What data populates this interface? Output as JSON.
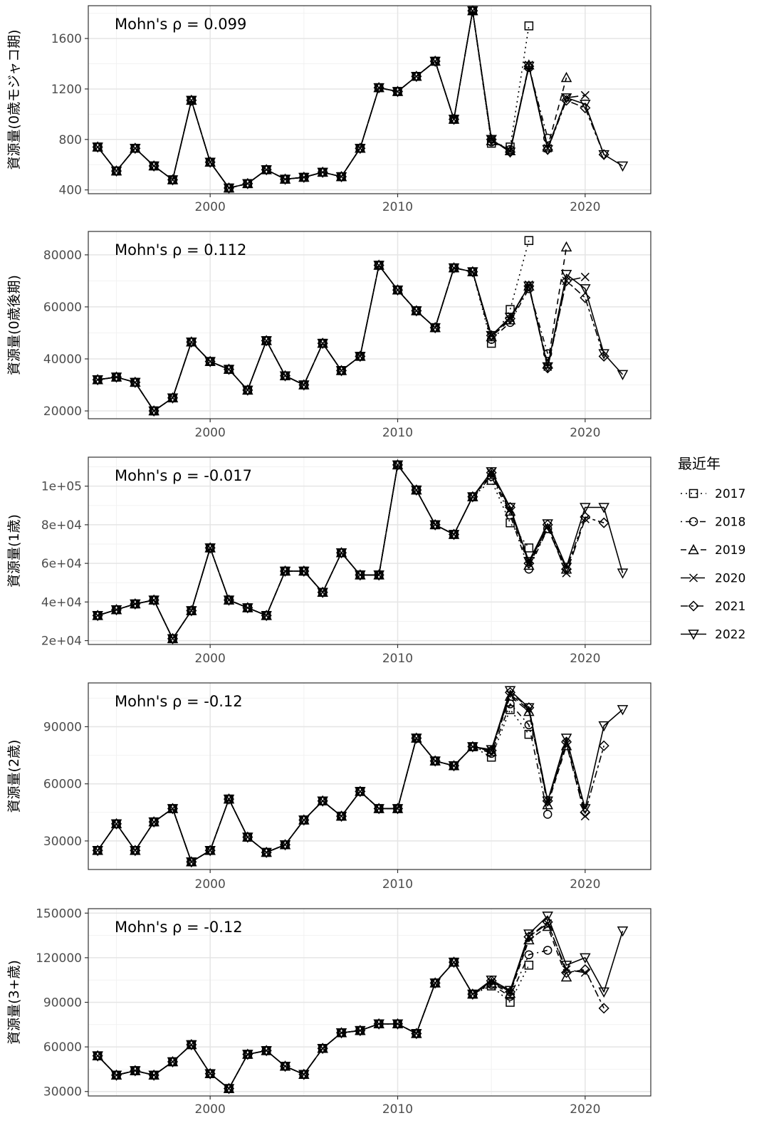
{
  "legend": {
    "title": "最近年",
    "entries": [
      {
        "label": "2017",
        "shape": "square",
        "dash": "dotted"
      },
      {
        "label": "2018",
        "shape": "circle",
        "dash": "dotdash"
      },
      {
        "label": "2019",
        "shape": "triangle-up",
        "dash": "dashed"
      },
      {
        "label": "2020",
        "shape": "cross",
        "dash": "longdash"
      },
      {
        "label": "2021",
        "shape": "diamond",
        "dash": "twodash"
      },
      {
        "label": "2022",
        "shape": "triangle-down",
        "dash": "solid"
      }
    ]
  },
  "chart_data": [
    {
      "type": "line",
      "ylabel": "資源量(0歳モジャコ期)",
      "annotation": "Mohn's ρ = 0.099",
      "xlim": [
        1993.5,
        2023.5
      ],
      "ylim": [
        370,
        1860
      ],
      "yticks": [
        400,
        800,
        1200,
        1600
      ],
      "ytick_labels": [
        "400",
        "800",
        "1200",
        "1600"
      ],
      "xticks": [
        2000,
        2010,
        2020
      ],
      "grid": true,
      "base_x": [
        1994,
        1995,
        1996,
        1997,
        1998,
        1999,
        2000,
        2001,
        2002,
        2003,
        2004,
        2005,
        2006,
        2007,
        2008,
        2009,
        2010,
        2011,
        2012,
        2013,
        2014
      ],
      "base_y": [
        740,
        550,
        730,
        590,
        480,
        1110,
        620,
        415,
        450,
        560,
        485,
        500,
        540,
        505,
        730,
        1210,
        1180,
        1300,
        1420,
        960,
        1820
      ],
      "series": [
        {
          "name": "2017",
          "x": [
            2015,
            2016,
            2017
          ],
          "y": [
            770,
            740,
            1700
          ]
        },
        {
          "name": "2018",
          "x": [
            2015,
            2016,
            2017,
            2018
          ],
          "y": [
            780,
            720,
            1370,
            810
          ]
        },
        {
          "name": "2019",
          "x": [
            2015,
            2016,
            2017,
            2018,
            2019
          ],
          "y": [
            790,
            710,
            1390,
            740,
            1290
          ]
        },
        {
          "name": "2020",
          "x": [
            2015,
            2016,
            2017,
            2018,
            2019,
            2020
          ],
          "y": [
            800,
            710,
            1390,
            730,
            1130,
            1150
          ]
        },
        {
          "name": "2021",
          "x": [
            2015,
            2016,
            2017,
            2018,
            2019,
            2020,
            2021
          ],
          "y": [
            800,
            700,
            1380,
            720,
            1110,
            1050,
            680
          ]
        },
        {
          "name": "2022",
          "x": [
            2015,
            2016,
            2017,
            2018,
            2019,
            2020,
            2021,
            2022
          ],
          "y": [
            800,
            700,
            1380,
            720,
            1130,
            1080,
            680,
            590
          ]
        }
      ]
    },
    {
      "type": "line",
      "ylabel": "資源量(0歳後期)",
      "annotation": "Mohn's ρ = 0.112",
      "xlim": [
        1993.5,
        2023.5
      ],
      "ylim": [
        17000,
        89000
      ],
      "yticks": [
        20000,
        40000,
        60000,
        80000
      ],
      "ytick_labels": [
        "20000",
        "40000",
        "60000",
        "80000"
      ],
      "xticks": [
        2000,
        2010,
        2020
      ],
      "grid": true,
      "base_x": [
        1994,
        1995,
        1996,
        1997,
        1998,
        1999,
        2000,
        2001,
        2002,
        2003,
        2004,
        2005,
        2006,
        2007,
        2008,
        2009,
        2010,
        2011,
        2012,
        2013,
        2014
      ],
      "base_y": [
        32000,
        33000,
        31000,
        20000,
        25000,
        46500,
        39000,
        36000,
        28000,
        47000,
        33500,
        30000,
        46000,
        35500,
        41000,
        76000,
        66500,
        58500,
        52000,
        75000,
        73500
      ],
      "series": [
        {
          "name": "2017",
          "x": [
            2015,
            2016,
            2017
          ],
          "y": [
            46000,
            59000,
            85500
          ]
        },
        {
          "name": "2018",
          "x": [
            2015,
            2016,
            2017,
            2018
          ],
          "y": [
            47500,
            54000,
            67000,
            42000
          ]
        },
        {
          "name": "2019",
          "x": [
            2015,
            2016,
            2017,
            2018,
            2019
          ],
          "y": [
            48500,
            55000,
            68000,
            38000,
            83000
          ]
        },
        {
          "name": "2020",
          "x": [
            2015,
            2016,
            2017,
            2018,
            2019,
            2020
          ],
          "y": [
            49000,
            55500,
            68500,
            37000,
            70000,
            71500
          ]
        },
        {
          "name": "2021",
          "x": [
            2015,
            2016,
            2017,
            2018,
            2019,
            2020,
            2021
          ],
          "y": [
            49000,
            55500,
            68000,
            36500,
            70000,
            63500,
            41000
          ]
        },
        {
          "name": "2022",
          "x": [
            2015,
            2016,
            2017,
            2018,
            2019,
            2020,
            2021,
            2022
          ],
          "y": [
            49000,
            56000,
            68000,
            37000,
            72500,
            67000,
            42000,
            34000
          ]
        }
      ]
    },
    {
      "type": "line",
      "ylabel": "資源量(1歳)",
      "annotation": "Mohn's ρ = -0.017",
      "xlim": [
        1993.5,
        2023.5
      ],
      "ylim": [
        18000,
        115000
      ],
      "yticks": [
        20000,
        40000,
        60000,
        80000,
        100000
      ],
      "ytick_labels": [
        "2e+04",
        "4e+04",
        "6e+04",
        "8e+04",
        "1e+05"
      ],
      "xticks": [
        2000,
        2010,
        2020
      ],
      "grid": true,
      "base_x": [
        1994,
        1995,
        1996,
        1997,
        1998,
        1999,
        2000,
        2001,
        2002,
        2003,
        2004,
        2005,
        2006,
        2007,
        2008,
        2009,
        2010,
        2011,
        2012,
        2013,
        2014
      ],
      "base_y": [
        33000,
        36000,
        39000,
        41000,
        21000,
        35500,
        68000,
        41000,
        37000,
        33000,
        56000,
        56000,
        45000,
        65500,
        54000,
        54000,
        111000,
        98000,
        80000,
        75000,
        94500
      ],
      "series": [
        {
          "name": "2017",
          "x": [
            2015,
            2016,
            2017
          ],
          "y": [
            103000,
            81000,
            68000
          ]
        },
        {
          "name": "2018",
          "x": [
            2015,
            2016,
            2017,
            2018
          ],
          "y": [
            105000,
            85000,
            57000,
            78000
          ]
        },
        {
          "name": "2019",
          "x": [
            2015,
            2016,
            2017,
            2018,
            2019
          ],
          "y": [
            106000,
            87000,
            59000,
            78000,
            57000
          ]
        },
        {
          "name": "2020",
          "x": [
            2015,
            2016,
            2017,
            2018,
            2019,
            2020
          ],
          "y": [
            107000,
            88000,
            60000,
            79000,
            55000,
            83000
          ]
        },
        {
          "name": "2021",
          "x": [
            2015,
            2016,
            2017,
            2018,
            2019,
            2020,
            2021
          ],
          "y": [
            107000,
            89000,
            60000,
            80000,
            57000,
            84000,
            81000
          ]
        },
        {
          "name": "2022",
          "x": [
            2015,
            2016,
            2017,
            2018,
            2019,
            2020,
            2021,
            2022
          ],
          "y": [
            107500,
            89000,
            61000,
            80500,
            58000,
            89000,
            89000,
            55000
          ]
        }
      ]
    },
    {
      "type": "line",
      "ylabel": "資源量(2歳)",
      "annotation": "Mohn's ρ = -0.12",
      "xlim": [
        1993.5,
        2023.5
      ],
      "ylim": [
        15000,
        113000
      ],
      "yticks": [
        30000,
        60000,
        90000
      ],
      "ytick_labels": [
        "30000",
        "60000",
        "90000"
      ],
      "xticks": [
        2000,
        2010,
        2020
      ],
      "grid": true,
      "base_x": [
        1994,
        1995,
        1996,
        1997,
        1998,
        1999,
        2000,
        2001,
        2002,
        2003,
        2004,
        2005,
        2006,
        2007,
        2008,
        2009,
        2010,
        2011,
        2012,
        2013,
        2014
      ],
      "base_y": [
        25000,
        39000,
        25000,
        40000,
        47000,
        19000,
        25000,
        52000,
        32000,
        24000,
        28000,
        41000,
        51000,
        43000,
        56000,
        47000,
        47000,
        84000,
        72000,
        69500,
        79500
      ],
      "series": [
        {
          "name": "2017",
          "x": [
            2015,
            2016,
            2017
          ],
          "y": [
            74000,
            99000,
            86000
          ]
        },
        {
          "name": "2018",
          "x": [
            2015,
            2016,
            2017,
            2018
          ],
          "y": [
            76000,
            102000,
            91000,
            44000
          ]
        },
        {
          "name": "2019",
          "x": [
            2015,
            2016,
            2017,
            2018,
            2019
          ],
          "y": [
            77000,
            106000,
            98000,
            49000,
            80000
          ]
        },
        {
          "name": "2020",
          "x": [
            2015,
            2016,
            2017,
            2018,
            2019,
            2020
          ],
          "y": [
            77500,
            107000,
            99000,
            50000,
            81000,
            43000
          ]
        },
        {
          "name": "2021",
          "x": [
            2015,
            2016,
            2017,
            2018,
            2019,
            2020,
            2021
          ],
          "y": [
            77500,
            108000,
            100000,
            51000,
            82000,
            45000,
            80000
          ]
        },
        {
          "name": "2022",
          "x": [
            2015,
            2016,
            2017,
            2018,
            2019,
            2020,
            2021,
            2022
          ],
          "y": [
            78000,
            109000,
            100000,
            51000,
            84000,
            47000,
            90500,
            99000
          ]
        }
      ]
    },
    {
      "type": "line",
      "ylabel": "資源量(3+歳)",
      "annotation": "Mohn's ρ = -0.12",
      "xlim": [
        1993.5,
        2023.5
      ],
      "ylim": [
        27000,
        153000
      ],
      "yticks": [
        30000,
        60000,
        90000,
        120000,
        150000
      ],
      "ytick_labels": [
        "30000",
        "60000",
        "90000",
        "120000",
        "150000"
      ],
      "xticks": [
        2000,
        2010,
        2020
      ],
      "grid": true,
      "base_x": [
        1994,
        1995,
        1996,
        1997,
        1998,
        1999,
        2000,
        2001,
        2002,
        2003,
        2004,
        2005,
        2006,
        2007,
        2008,
        2009,
        2010,
        2011,
        2012,
        2013,
        2014
      ],
      "base_y": [
        54000,
        41000,
        44000,
        41000,
        50000,
        61500,
        42000,
        32000,
        55000,
        57500,
        47000,
        41500,
        59000,
        69500,
        71000,
        75500,
        75500,
        69000,
        103000,
        117000,
        95500
      ],
      "series": [
        {
          "name": "2017",
          "x": [
            2015,
            2016,
            2017
          ],
          "y": [
            101000,
            90000,
            115000
          ]
        },
        {
          "name": "2018",
          "x": [
            2015,
            2016,
            2017,
            2018
          ],
          "y": [
            102000,
            94000,
            122000,
            125000
          ]
        },
        {
          "name": "2019",
          "x": [
            2015,
            2016,
            2017,
            2018,
            2019
          ],
          "y": [
            103000,
            96000,
            132000,
            141000,
            107000
          ]
        },
        {
          "name": "2020",
          "x": [
            2015,
            2016,
            2017,
            2018,
            2019,
            2020
          ],
          "y": [
            104000,
            97000,
            134000,
            143000,
            112000,
            110000
          ]
        },
        {
          "name": "2021",
          "x": [
            2015,
            2016,
            2017,
            2018,
            2019,
            2020,
            2021
          ],
          "y": [
            104500,
            97000,
            134000,
            144000,
            110000,
            112000,
            86000
          ]
        },
        {
          "name": "2022",
          "x": [
            2015,
            2016,
            2017,
            2018,
            2019,
            2020,
            2021,
            2022
          ],
          "y": [
            105000,
            98000,
            136000,
            148000,
            115000,
            120000,
            97000,
            138000
          ]
        }
      ]
    }
  ]
}
